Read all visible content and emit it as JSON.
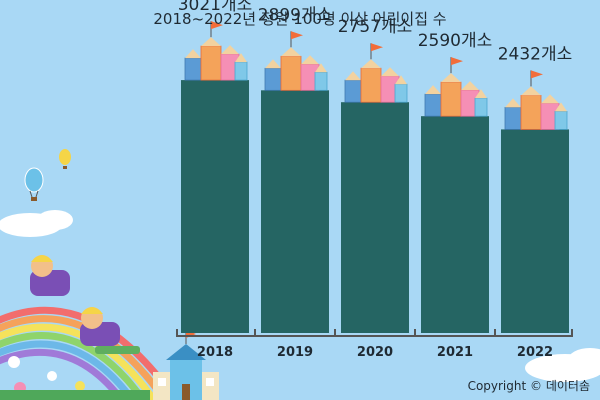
{
  "chart_data": {
    "type": "bar",
    "title": "2018~2022년 정원 100명 이상 어린이집 수",
    "categories": [
      "2018",
      "2019",
      "2020",
      "2021",
      "2022"
    ],
    "values": [
      3021,
      2899,
      2757,
      2590,
      2432
    ],
    "value_labels": [
      "3021개소",
      "2899개소",
      "2757개소",
      "2590개소",
      "2432개소"
    ],
    "ylim": [
      0,
      3500
    ],
    "grid": false,
    "legend": "none"
  },
  "copyright": "Copyright © 데이터솜",
  "colors": {
    "background": "#a9d8f5",
    "bar": "#256563",
    "axis": "#555555"
  },
  "decorations": [
    "pencil-castle-icon",
    "hot-air-balloon-icon",
    "rainbow-icon",
    "children-sliding-icon",
    "school-building-icon",
    "cloud-icon",
    "flower-icon"
  ]
}
